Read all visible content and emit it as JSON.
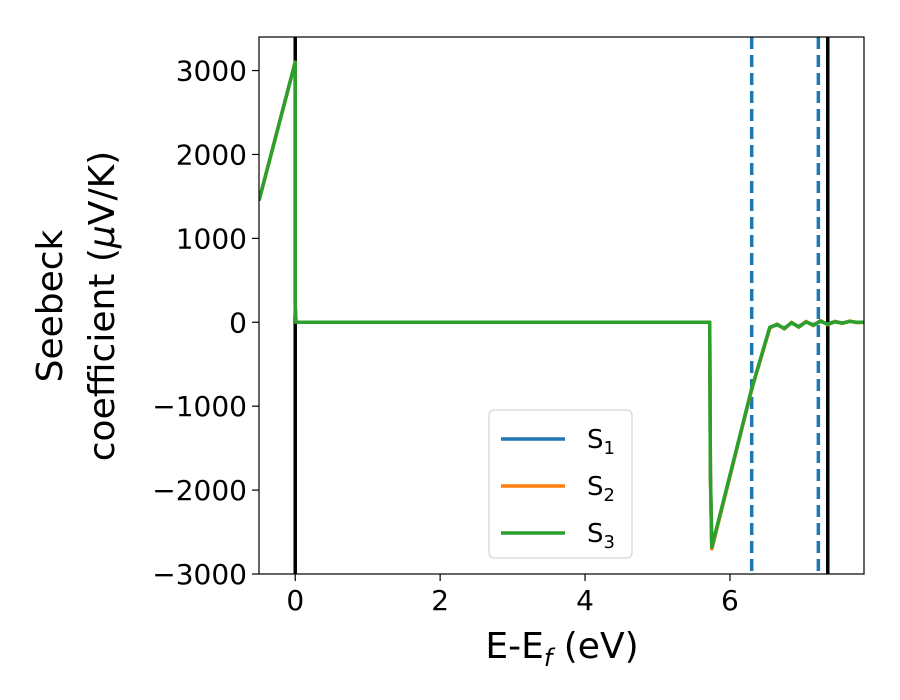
{
  "chart_data": {
    "type": "line",
    "xlabel": "E-E",
    "xlabel_sub": "f",
    "xlabel_unit": " (eV)",
    "ylabel_line1": "Seebeck",
    "ylabel_line2_prefix": "coefficient  (",
    "ylabel_mu": "μ",
    "ylabel_line2_suffix": "V/K)",
    "xlim": [
      -0.5,
      7.85
    ],
    "ylim": [
      -3000,
      3400
    ],
    "x_ticks": [
      0,
      2,
      4,
      6
    ],
    "x_tick_labels": [
      "0",
      "2",
      "4",
      "6"
    ],
    "y_ticks": [
      3000,
      2000,
      1000,
      0,
      -1000,
      -2000,
      -3000
    ],
    "y_tick_labels": [
      "3000",
      "2000",
      "1000",
      "0",
      "−1000",
      "−2000",
      "−3000"
    ],
    "grid": false,
    "legend_position": "lower-center",
    "vlines": [
      {
        "x": 0.0,
        "style": "solid",
        "color": "#000000"
      },
      {
        "x": 7.35,
        "style": "solid",
        "color": "#000000"
      },
      {
        "x": 6.3,
        "style": "dashed",
        "color": "#1f77b4"
      },
      {
        "x": 7.22,
        "style": "dashed",
        "color": "#1f77b4"
      }
    ],
    "series": [
      {
        "base": "S",
        "sub": "1",
        "color": "#1f77b4",
        "x": [
          -0.5,
          0.0,
          0.0,
          0.01,
          5.72,
          5.73,
          5.75,
          6.3,
          6.55,
          6.65,
          6.75,
          6.85,
          6.95,
          7.05,
          7.15,
          7.25,
          7.35,
          7.45,
          7.55,
          7.65,
          7.75,
          7.85
        ],
        "y": [
          1450,
          3100,
          200,
          0,
          0,
          -1800,
          -2700,
          -800,
          -60,
          -30,
          -70,
          -10,
          -50,
          5,
          -30,
          10,
          -20,
          10,
          -10,
          10,
          0,
          0
        ]
      },
      {
        "base": "S",
        "sub": "2",
        "color": "#ff7f0e",
        "x": [
          -0.5,
          0.0,
          0.0,
          0.01,
          5.72,
          5.73,
          5.75,
          6.3,
          6.55,
          6.65,
          6.75,
          6.85,
          6.95,
          7.05,
          7.15,
          7.25,
          7.35,
          7.45,
          7.55,
          7.65,
          7.75,
          7.85
        ],
        "y": [
          1450,
          3100,
          200,
          0,
          0,
          -1800,
          -2700,
          -800,
          -70,
          -20,
          -80,
          0,
          -60,
          10,
          -40,
          20,
          -30,
          10,
          -15,
          15,
          -5,
          0
        ]
      },
      {
        "base": "S",
        "sub": "3",
        "color": "#2ca02c",
        "x": [
          -0.5,
          0.0,
          0.0,
          0.01,
          5.72,
          5.73,
          5.75,
          6.3,
          6.55,
          6.65,
          6.75,
          6.85,
          6.95,
          7.05,
          7.15,
          7.25,
          7.35,
          7.45,
          7.55,
          7.65,
          7.75,
          7.85
        ],
        "y": [
          1450,
          3100,
          200,
          0,
          0,
          -1800,
          -2680,
          -790,
          -60,
          -25,
          -75,
          -5,
          -55,
          5,
          -35,
          15,
          -25,
          5,
          -10,
          10,
          0,
          0
        ]
      }
    ]
  }
}
